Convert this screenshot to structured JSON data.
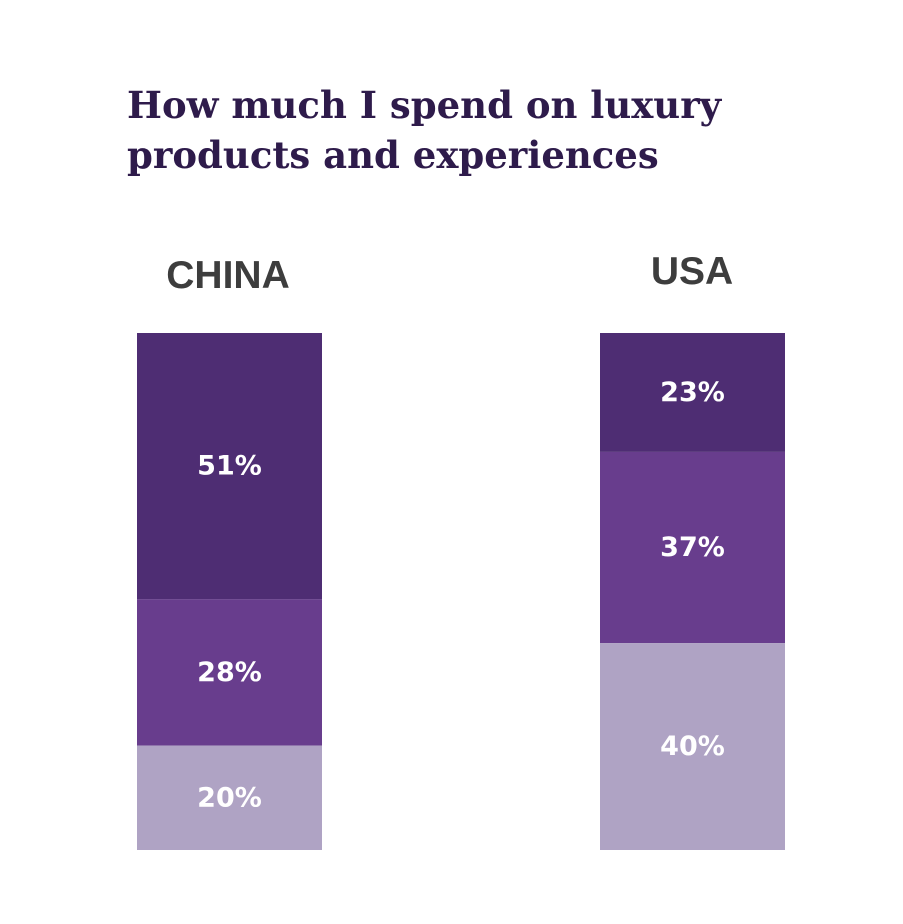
{
  "chart_data": {
    "type": "bar",
    "stacked": true,
    "title": "How much I spend on luxury products and experiences",
    "categories": [
      "CHINA",
      "USA"
    ],
    "series": [
      {
        "values": [
          51,
          23
        ],
        "labels": [
          "51%",
          "23%"
        ],
        "color": "#4e2d73"
      },
      {
        "values": [
          28,
          37
        ],
        "labels": [
          "28%",
          "37%"
        ],
        "color": "#683d8d"
      },
      {
        "values": [
          20,
          40
        ],
        "labels": [
          "20%",
          "40%"
        ],
        "color": "#afa3c4"
      }
    ],
    "grid": false,
    "legend": "none",
    "axes_visible": false
  }
}
